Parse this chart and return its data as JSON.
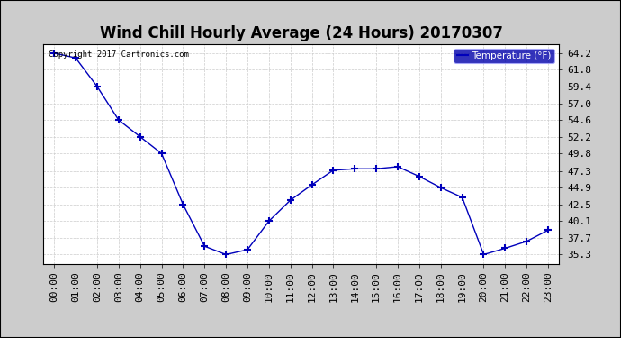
{
  "title": "Wind Chill Hourly Average (24 Hours) 20170307",
  "copyright": "Copyright 2017 Cartronics.com",
  "legend_label": "Temperature (°F)",
  "x_labels": [
    "00:00",
    "01:00",
    "02:00",
    "03:00",
    "04:00",
    "05:00",
    "06:00",
    "07:00",
    "08:00",
    "09:00",
    "10:00",
    "11:00",
    "12:00",
    "13:00",
    "14:00",
    "15:00",
    "16:00",
    "17:00",
    "18:00",
    "19:00",
    "20:00",
    "21:00",
    "22:00",
    "23:00"
  ],
  "y_values": [
    64.2,
    63.5,
    59.4,
    54.6,
    52.2,
    49.8,
    42.5,
    36.5,
    35.3,
    36.0,
    40.1,
    43.1,
    45.3,
    47.4,
    47.6,
    47.6,
    47.9,
    46.5,
    44.9,
    43.5,
    35.3,
    36.2,
    37.2,
    38.8
  ],
  "ylim_min": 34.0,
  "ylim_max": 65.5,
  "yticks": [
    35.3,
    37.7,
    40.1,
    42.5,
    44.9,
    47.3,
    49.8,
    52.2,
    54.6,
    57.0,
    59.4,
    61.8,
    64.2
  ],
  "line_color": "#0000bb",
  "marker": "+",
  "marker_size": 6,
  "marker_lw": 1.5,
  "background_color": "#ffffff",
  "grid_color": "#cccccc",
  "title_fontsize": 12,
  "tick_fontsize": 8,
  "legend_bg": "#0000aa",
  "legend_text_color": "#ffffff",
  "outer_bg": "#cccccc"
}
